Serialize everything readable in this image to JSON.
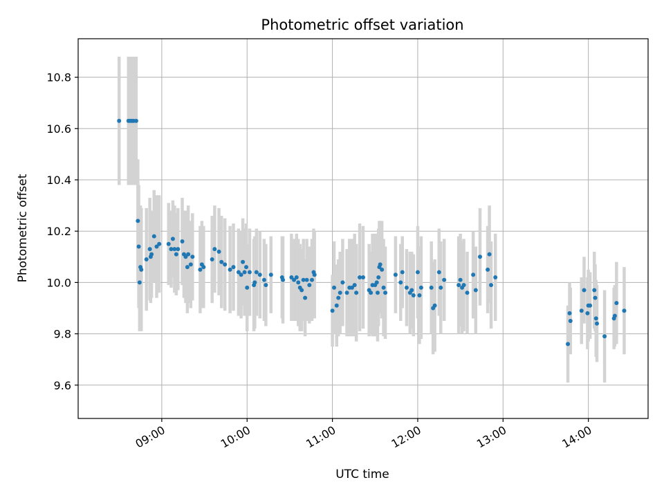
{
  "chart_data": {
    "type": "scatter",
    "title": "Photometric offset variation",
    "xlabel": "UTC time",
    "ylabel": "Photometric offset",
    "x_unit": "hours UTC",
    "xlim": [
      8.02,
      14.7
    ],
    "ylim": [
      9.47,
      10.95
    ],
    "grid": true,
    "xticks": [
      {
        "value": 9,
        "label": "09:00"
      },
      {
        "value": 10,
        "label": "10:00"
      },
      {
        "value": 11,
        "label": "11:00"
      },
      {
        "value": 12,
        "label": "12:00"
      },
      {
        "value": 13,
        "label": "13:00"
      },
      {
        "value": 14,
        "label": "14:00"
      }
    ],
    "yticks": [
      {
        "value": 9.6,
        "label": "9.6"
      },
      {
        "value": 9.8,
        "label": "9.8"
      },
      {
        "value": 10.0,
        "label": "10.0"
      },
      {
        "value": 10.2,
        "label": "10.2"
      },
      {
        "value": 10.4,
        "label": "10.4"
      },
      {
        "value": 10.6,
        "label": "10.6"
      },
      {
        "value": 10.8,
        "label": "10.8"
      }
    ],
    "colors": {
      "points": "#1f77b4",
      "errorbars": "#d3d3d3",
      "grid": "#b0b0b0"
    },
    "series": [
      {
        "points": [
          [
            8.5,
            10.63,
            0.25
          ],
          [
            8.61,
            10.63,
            0.25
          ],
          [
            8.63,
            10.63,
            0.25
          ],
          [
            8.65,
            10.63,
            0.25
          ],
          [
            8.67,
            10.63,
            0.25
          ],
          [
            8.7,
            10.63,
            0.25
          ],
          [
            8.72,
            10.24,
            0.24
          ],
          [
            8.73,
            10.14,
            0.24
          ],
          [
            8.74,
            10.0,
            0.19
          ],
          [
            8.75,
            10.06,
            0.24
          ],
          [
            8.76,
            10.05,
            0.24
          ],
          [
            8.82,
            10.09,
            0.2
          ],
          [
            8.86,
            10.13,
            0.2
          ],
          [
            8.87,
            10.1,
            0.18
          ],
          [
            8.88,
            10.11,
            0.17
          ],
          [
            8.91,
            10.18,
            0.18
          ],
          [
            8.94,
            10.14,
            0.2
          ],
          [
            8.97,
            10.15,
            0.19
          ],
          [
            9.08,
            10.15,
            0.16
          ],
          [
            9.11,
            10.13,
            0.15
          ],
          [
            9.13,
            10.17,
            0.15
          ],
          [
            9.15,
            10.13,
            0.17
          ],
          [
            9.17,
            10.11,
            0.16
          ],
          [
            9.19,
            10.13,
            0.16
          ],
          [
            9.24,
            10.16,
            0.17
          ],
          [
            9.26,
            10.11,
            0.17
          ],
          [
            9.28,
            10.1,
            0.18
          ],
          [
            9.3,
            10.06,
            0.18
          ],
          [
            9.31,
            10.11,
            0.19
          ],
          [
            9.34,
            10.07,
            0.17
          ],
          [
            9.36,
            10.1,
            0.17
          ],
          [
            9.45,
            10.05,
            0.17
          ],
          [
            9.47,
            10.07,
            0.17
          ],
          [
            9.49,
            10.06,
            0.16
          ],
          [
            9.59,
            10.09,
            0.17
          ],
          [
            9.62,
            10.13,
            0.17
          ],
          [
            9.67,
            10.12,
            0.17
          ],
          [
            9.7,
            10.08,
            0.18
          ],
          [
            9.74,
            10.07,
            0.18
          ],
          [
            9.8,
            10.05,
            0.17
          ],
          [
            9.84,
            10.06,
            0.17
          ],
          [
            9.9,
            10.04,
            0.17
          ],
          [
            9.93,
            10.03,
            0.17
          ],
          [
            9.95,
            10.08,
            0.17
          ],
          [
            9.97,
            10.04,
            0.17
          ],
          [
            9.99,
            10.06,
            0.17
          ],
          [
            10.0,
            9.98,
            0.17
          ],
          [
            10.03,
            10.04,
            0.17
          ],
          [
            10.08,
            9.99,
            0.18
          ],
          [
            10.09,
            10.0,
            0.18
          ],
          [
            10.11,
            10.04,
            0.17
          ],
          [
            10.15,
            10.03,
            0.17
          ],
          [
            10.2,
            10.01,
            0.16
          ],
          [
            10.22,
            9.99,
            0.16
          ],
          [
            10.28,
            10.03,
            0.15
          ],
          [
            10.41,
            10.02,
            0.16
          ],
          [
            10.42,
            10.01,
            0.17
          ],
          [
            10.52,
            10.02,
            0.17
          ],
          [
            10.55,
            10.01,
            0.16
          ],
          [
            10.58,
            10.02,
            0.17
          ],
          [
            10.6,
            10.0,
            0.17
          ],
          [
            10.62,
            9.98,
            0.17
          ],
          [
            10.64,
            9.97,
            0.16
          ],
          [
            10.66,
            10.01,
            0.16
          ],
          [
            10.68,
            9.94,
            0.15
          ],
          [
            10.7,
            10.01,
            0.16
          ],
          [
            10.73,
            9.99,
            0.15
          ],
          [
            10.76,
            10.01,
            0.16
          ],
          [
            10.78,
            10.04,
            0.17
          ],
          [
            10.79,
            10.03,
            0.17
          ],
          [
            11.0,
            9.89,
            0.14
          ],
          [
            11.02,
            9.98,
            0.18
          ],
          [
            11.05,
            9.91,
            0.16
          ],
          [
            11.07,
            9.94,
            0.15
          ],
          [
            11.09,
            9.96,
            0.16
          ],
          [
            11.12,
            10.0,
            0.17
          ],
          [
            11.17,
            9.96,
            0.17
          ],
          [
            11.2,
            9.98,
            0.19
          ],
          [
            11.23,
            9.98,
            0.19
          ],
          [
            11.26,
            9.99,
            0.2
          ],
          [
            11.28,
            9.96,
            0.19
          ],
          [
            11.32,
            10.02,
            0.21
          ],
          [
            11.36,
            10.02,
            0.2
          ],
          [
            11.43,
            9.97,
            0.18
          ],
          [
            11.45,
            9.96,
            0.16
          ],
          [
            11.47,
            9.99,
            0.2
          ],
          [
            11.5,
            9.99,
            0.2
          ],
          [
            11.52,
            10.0,
            0.19
          ],
          [
            11.53,
            9.96,
            0.19
          ],
          [
            11.54,
            10.02,
            0.19
          ],
          [
            11.55,
            10.06,
            0.18
          ],
          [
            11.56,
            10.07,
            0.17
          ],
          [
            11.58,
            10.05,
            0.19
          ],
          [
            11.6,
            9.98,
            0.19
          ],
          [
            11.62,
            9.96,
            0.18
          ],
          [
            11.74,
            10.03,
            0.15
          ],
          [
            11.8,
            10.0,
            0.15
          ],
          [
            11.82,
            10.04,
            0.14
          ],
          [
            11.87,
            9.98,
            0.15
          ],
          [
            11.91,
            9.96,
            0.16
          ],
          [
            11.93,
            9.97,
            0.15
          ],
          [
            11.95,
            9.95,
            0.16
          ],
          [
            12.0,
            10.04,
            0.18
          ],
          [
            12.02,
            9.95,
            0.19
          ],
          [
            12.04,
            9.98,
            0.2
          ],
          [
            12.16,
            9.98,
            0.18
          ],
          [
            12.18,
            9.9,
            0.18
          ],
          [
            12.2,
            9.91,
            0.18
          ],
          [
            12.25,
            10.04,
            0.17
          ],
          [
            12.27,
            9.98,
            0.18
          ],
          [
            12.31,
            10.01,
            0.16
          ],
          [
            12.48,
            9.99,
            0.19
          ],
          [
            12.5,
            10.01,
            0.18
          ],
          [
            12.52,
            9.98,
            0.18
          ],
          [
            12.54,
            9.99,
            0.18
          ],
          [
            12.58,
            9.96,
            0.16
          ],
          [
            12.65,
            10.03,
            0.17
          ],
          [
            12.68,
            9.97,
            0.17
          ],
          [
            12.73,
            10.1,
            0.19
          ],
          [
            12.82,
            10.05,
            0.17
          ],
          [
            12.84,
            10.11,
            0.19
          ],
          [
            12.86,
            9.99,
            0.17
          ],
          [
            12.91,
            10.02,
            0.17
          ],
          [
            13.76,
            9.76,
            0.15
          ],
          [
            13.78,
            9.88,
            0.12
          ],
          [
            13.79,
            9.85,
            0.13
          ],
          [
            13.92,
            9.89,
            0.13
          ],
          [
            13.95,
            9.97,
            0.13
          ],
          [
            13.99,
            9.88,
            0.14
          ],
          [
            14.0,
            9.91,
            0.14
          ],
          [
            14.02,
            9.91,
            0.13
          ],
          [
            14.07,
            9.97,
            0.15
          ],
          [
            14.08,
            9.94,
            0.13
          ],
          [
            14.09,
            9.86,
            0.15
          ],
          [
            14.1,
            9.84,
            0.15
          ],
          [
            14.19,
            9.79,
            0.18
          ],
          [
            14.3,
            9.86,
            0.12
          ],
          [
            14.31,
            9.87,
            0.12
          ],
          [
            14.33,
            9.92,
            0.16
          ],
          [
            14.42,
            9.89,
            0.17
          ]
        ]
      }
    ]
  }
}
